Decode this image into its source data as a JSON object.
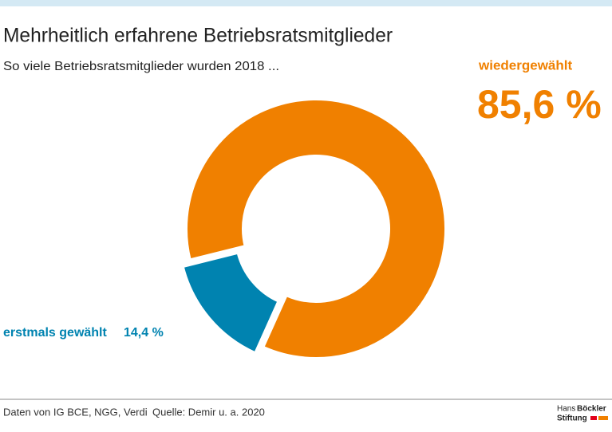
{
  "chart_data": {
    "type": "pie",
    "donut": true,
    "title": "Mehrheitlich erfahrene Betriebsratsmitglieder",
    "subtitle": "So viele Betriebsratsmitglieder wurden 2018 ...",
    "categories": [
      "wiedergewählt",
      "erstmals gewählt"
    ],
    "values": [
      85.6,
      14.4
    ],
    "value_labels": [
      "85,6 %",
      "14,4 %"
    ],
    "colors": [
      "#f08000",
      "#0083b0"
    ],
    "notes": [
      "Daten von IG BCE, NGG, Verdi",
      "Quelle: Demir u. a. 2020"
    ],
    "logo": [
      "Hans",
      "Böckler",
      "Stiftung"
    ]
  }
}
